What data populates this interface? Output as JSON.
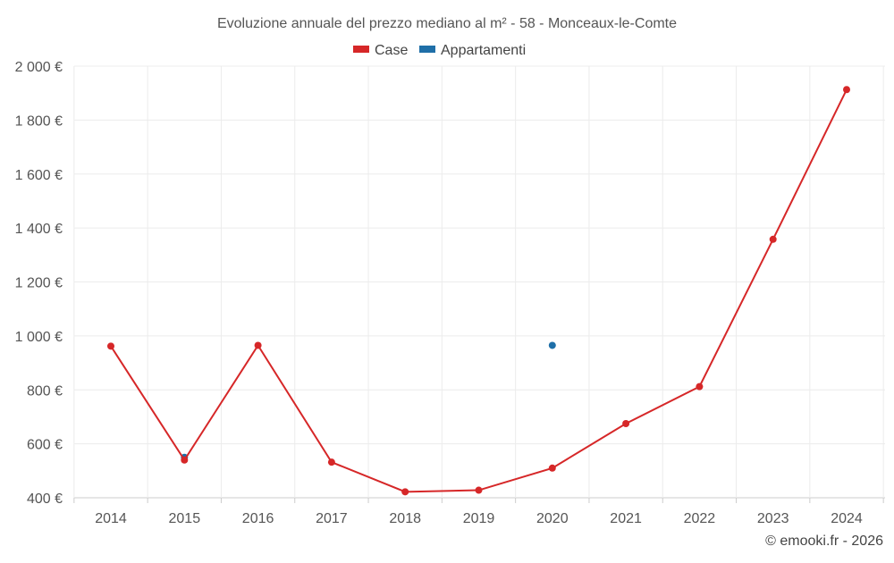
{
  "chart_data": {
    "type": "line",
    "title": "Evoluzione annuale del prezzo mediano al m² - 58 - Monceaux-le-Comte",
    "xlabel": "",
    "ylabel": "",
    "categories": [
      "2014",
      "2015",
      "2016",
      "2017",
      "2018",
      "2019",
      "2020",
      "2021",
      "2022",
      "2023",
      "2024"
    ],
    "ylim": [
      400,
      2000
    ],
    "yticks": [
      400,
      600,
      800,
      1000,
      1200,
      1400,
      1600,
      1800,
      2000
    ],
    "ytick_labels": [
      "400 €",
      "600 €",
      "800 €",
      "1 000 €",
      "1 200 €",
      "1 400 €",
      "1 600 €",
      "1 800 €",
      "2 000 €"
    ],
    "grid": true,
    "legend_position": "top-center",
    "series": [
      {
        "name": "Case",
        "color": "#d62728",
        "values": [
          962,
          540,
          965,
          532,
          422,
          428,
          510,
          675,
          812,
          1358,
          1913
        ]
      },
      {
        "name": "Appartamenti",
        "color": "#1f6fa8",
        "values": [
          null,
          550,
          null,
          null,
          null,
          null,
          965,
          null,
          null,
          null,
          null
        ]
      }
    ]
  },
  "credit": "© emooki.fr - 2026"
}
